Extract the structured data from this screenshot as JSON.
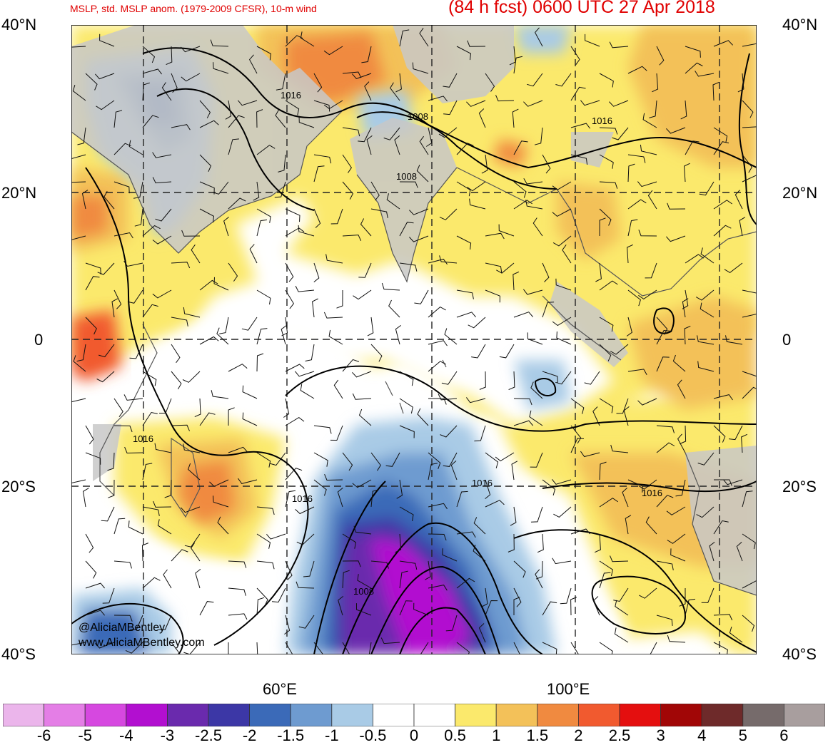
{
  "title": {
    "left": "MSLP, std. MSLP anom. (1979-2009 CFSR), 10-m wind",
    "right": "(84 h fcst) 0600 UTC 27 Apr 2018"
  },
  "lat_labels": [
    "40°N",
    "20°N",
    "0",
    "20°S",
    "40°S"
  ],
  "lon_labels": [
    "60°E",
    "100°E"
  ],
  "isobar_labels": [
    "1016",
    "1008",
    "1008",
    "1016",
    "1016",
    "1016",
    "1016",
    "1016",
    "1008"
  ],
  "credit": {
    "handle": "@AliciaMBentley",
    "site": "www.AliciaMBentley.com"
  },
  "colorbar": {
    "colors": [
      "#ebb5eb",
      "#e47ee6",
      "#d648e0",
      "#b20fd0",
      "#6a2aad",
      "#3c37a6",
      "#3b6ab8",
      "#6e9bd0",
      "#a9cbe6",
      "#ffffff",
      "#ffffff",
      "#fbe96c",
      "#f3c159",
      "#f08a40",
      "#f15a2f",
      "#e40f0f",
      "#a10606",
      "#6e2a2a",
      "#766b6b",
      "#a89e9e"
    ],
    "labels": [
      "-6",
      "-5",
      "-4",
      "-3",
      "-2.5",
      "-2",
      "-1.5",
      "-1",
      "-0.5",
      "0",
      "0.5",
      "1",
      "1.5",
      "2",
      "2.5",
      "3",
      "4",
      "5",
      "6"
    ]
  }
}
